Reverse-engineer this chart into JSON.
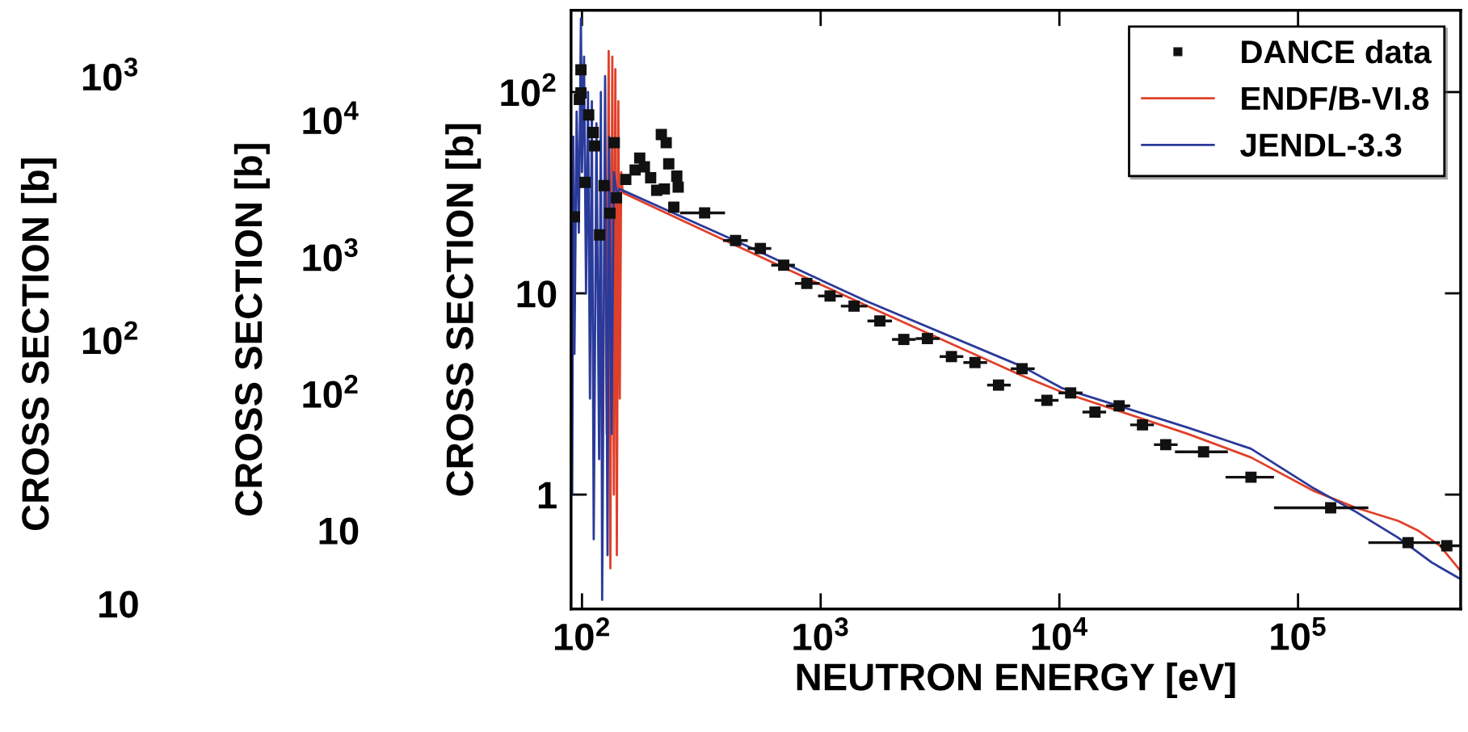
{
  "chart_data": [
    {
      "type": "other",
      "ylabel": "CROSS SECTION [b]",
      "annotations": [
        "10$^{3}$",
        "10$^{2}$",
        "10"
      ]
    },
    {
      "type": "other",
      "ylabel": "CROSS SECTION [b]",
      "annotations": [
        "10$^{4}$",
        "10$^{3}$",
        "10$^{2}$",
        "10"
      ]
    },
    {
      "type": "line",
      "xlabel": "NEUTRON ENERGY [eV]",
      "ylabel": "CROSS SECTION [b]",
      "log": "xy",
      "legend": "top right",
      "xlim": [
        90,
        480000
      ],
      "ylim": [
        0.27,
        255
      ],
      "xticks": [
        {
          "value": 100,
          "label": "10$^{2}$"
        },
        {
          "value": 1000,
          "label": "10$^{3}$"
        },
        {
          "value": 10000,
          "label": "10$^{4}$"
        },
        {
          "value": 100000,
          "label": "10$^{5}$"
        }
      ],
      "yticks": [
        1,
        10,
        {
          "value": 100,
          "label": "10$^{2}$"
        }
      ],
      "series": [
        {
          "name": "DANCE data",
          "type": "scatter",
          "marker": "square",
          "color": "#111111",
          "x": [
            93,
            97.5,
            99,
            99,
            103,
            106.7,
            111.5,
            113,
            118.5,
            123.8,
            131,
            136.6,
            139.5,
            152.6,
            167,
            174.6,
            182.6,
            194,
            205.6,
            215,
            221.4,
            225.4,
            231,
            242.5,
            249.6,
            253,
            326.5,
            440,
            559,
            700,
            875,
            1095,
            1380,
            1770,
            2230,
            2800,
            3530,
            4430,
            5560,
            6980,
            8870,
            11150,
            14100,
            17800,
            22300,
            27900,
            40200,
            63500,
            137000,
            289000,
            420000
          ],
          "values": [
            24,
            92,
            129,
            99,
            35.6,
            77,
            63,
            54,
            19.5,
            34.3,
            25,
            56,
            29.8,
            36.8,
            41,
            47,
            42.5,
            37.5,
            32.5,
            61.5,
            33,
            56,
            44,
            26.8,
            38.2,
            33.7,
            25.1,
            18.3,
            16.7,
            13.8,
            11.2,
            9.7,
            8.64,
            7.29,
            5.9,
            5.96,
            4.85,
            4.53,
            3.5,
            4.22,
            2.94,
            3.2,
            2.57,
            2.76,
            2.22,
            1.77,
            1.63,
            1.22,
            0.86,
            0.577,
            0.557
          ],
          "xerrors": [
            null,
            null,
            null,
            null,
            null,
            null,
            null,
            null,
            null,
            null,
            null,
            null,
            null,
            null,
            null,
            null,
            null,
            null,
            null,
            null,
            null,
            null,
            null,
            null,
            null,
            null,
            [
              257.5,
              397.5
            ],
            [
              390,
              495
            ],
            [
              495,
              621
            ],
            [
              621,
              780
            ],
            [
              780,
              990
            ],
            [
              975,
              1235
            ],
            [
              1215,
              1570
            ],
            [
              1570,
              1990
            ],
            [
              1990,
              2500
            ],
            [
              2500,
              3150
            ],
            [
              3150,
              3960
            ],
            [
              3960,
              4980
            ],
            [
              4980,
              6260
            ],
            [
              6260,
              7880
            ],
            [
              7880,
              9920
            ],
            [
              9920,
              12500
            ],
            [
              12500,
              15700
            ],
            [
              15700,
              19800
            ],
            [
              19800,
              24900
            ],
            [
              24900,
              31300
            ],
            [
              30500,
              50800
            ],
            [
              49700,
              79300
            ],
            [
              79300,
              197000
            ],
            [
              197000,
              393000
            ],
            [
              393000,
              480000
            ]
          ]
        },
        {
          "name": "ENDF/B-VI.8",
          "color": "#e0402a",
          "x": [
            125,
            127,
            129.4,
            131.5,
            134,
            136,
            138,
            140,
            142,
            144,
            146,
            148,
            150,
            475,
            1570,
            6980,
            10200,
            34600,
            63500,
            117000,
            175000,
            263000,
            320000,
            393000,
            480000
          ],
          "values": [
            30,
            2,
            160,
            0.43,
            150,
            1,
            130,
            0.5,
            90,
            3,
            40,
            32,
            31.4,
            16.6,
            8.64,
            3.9,
            3.24,
            2.0,
            1.53,
            1.04,
            0.86,
            0.74,
            0.66,
            0.557,
            0.417
          ]
        },
        {
          "name": "JENDL-3.3",
          "color": "#2a3a9a",
          "x": [
            91,
            92,
            93,
            95,
            97,
            99,
            100,
            102,
            104,
            106,
            108,
            110,
            112,
            115,
            118,
            120,
            121.5,
            125,
            128,
            130,
            133,
            136,
            140,
            143.7,
            475,
            1570,
            6980,
            10200,
            34600,
            63500,
            117000,
            175000,
            263000,
            363000,
            480000
          ],
          "values": [
            1,
            60,
            5,
            80,
            20,
            232,
            40,
            150,
            10,
            100,
            3,
            90,
            0.6,
            70,
            1.5,
            100,
            0.3,
            120,
            0.5,
            60,
            2,
            40,
            31,
            33,
            17.5,
            9.1,
            4.33,
            3.39,
            2.15,
            1.69,
            1.07,
            0.82,
            0.61,
            0.46,
            0.38
          ]
        }
      ]
    }
  ]
}
